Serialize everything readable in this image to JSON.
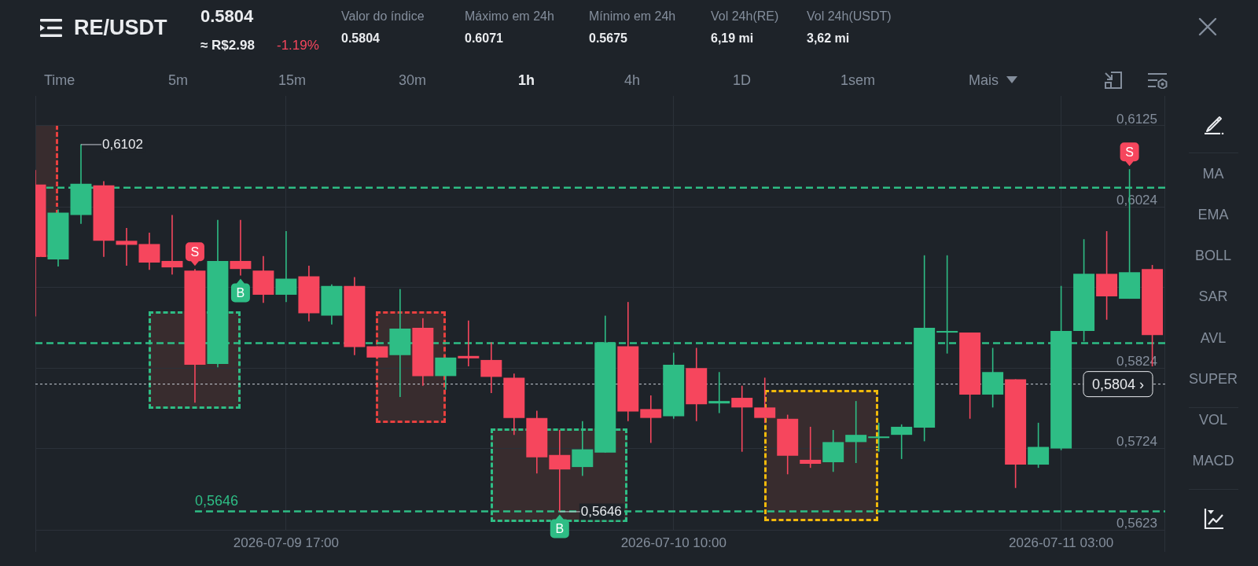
{
  "chart_data": {
    "type": "candlestick",
    "title": "RE/USDT",
    "x": [
      "2026-07-09T06:00",
      "2026-07-09T07:00",
      "2026-07-09T08:00",
      "2026-07-09T09:00",
      "2026-07-09T10:00",
      "2026-07-09T11:00",
      "2026-07-09T12:00",
      "2026-07-09T13:00",
      "2026-07-09T14:00",
      "2026-07-09T15:00",
      "2026-07-09T16:00",
      "2026-07-09T17:00",
      "2026-07-09T18:00",
      "2026-07-09T19:00",
      "2026-07-09T20:00",
      "2026-07-09T21:00",
      "2026-07-09T22:00",
      "2026-07-09T23:00",
      "2026-07-10T00:00",
      "2026-07-10T01:00",
      "2026-07-10T02:00",
      "2026-07-10T03:00",
      "2026-07-10T04:00",
      "2026-07-10T05:00",
      "2026-07-10T06:00",
      "2026-07-10T07:00",
      "2026-07-10T08:00",
      "2026-07-10T09:00",
      "2026-07-10T10:00",
      "2026-07-10T11:00",
      "2026-07-10T12:00",
      "2026-07-10T13:00",
      "2026-07-10T14:00",
      "2026-07-10T15:00",
      "2026-07-10T16:00",
      "2026-07-10T17:00",
      "2026-07-10T18:00",
      "2026-07-10T19:00",
      "2026-07-10T20:00",
      "2026-07-10T21:00",
      "2026-07-10T22:00",
      "2026-07-10T23:00",
      "2026-07-11T00:00",
      "2026-07-11T01:00",
      "2026-07-11T02:00",
      "2026-07-11T03:00",
      "2026-07-11T04:00",
      "2026-07-11T05:00",
      "2026-07-11T06:00",
      "2026-07-11T07:00"
    ],
    "ohlc": [
      [
        0.6052,
        0.607,
        0.5888,
        0.5962
      ],
      [
        0.5959,
        0.6021,
        0.595,
        0.6017
      ],
      [
        0.6014,
        0.6102,
        0.6003,
        0.6053
      ],
      [
        0.6051,
        0.6056,
        0.5962,
        0.5982
      ],
      [
        0.5982,
        0.5998,
        0.5951,
        0.5977
      ],
      [
        0.5978,
        0.5992,
        0.5946,
        0.5955
      ],
      [
        0.5957,
        0.6014,
        0.594,
        0.5949
      ],
      [
        0.5945,
        0.5947,
        0.5781,
        0.5828
      ],
      [
        0.5829,
        0.6008,
        0.5825,
        0.5957
      ],
      [
        0.5957,
        0.6008,
        0.5939,
        0.5947
      ],
      [
        0.5945,
        0.5963,
        0.5905,
        0.5915
      ],
      [
        0.5915,
        0.5994,
        0.5906,
        0.5935
      ],
      [
        0.5938,
        0.5951,
        0.5882,
        0.5892
      ],
      [
        0.5889,
        0.5928,
        0.5878,
        0.5926
      ],
      [
        0.5926,
        0.5937,
        0.584,
        0.585
      ],
      [
        0.5851,
        0.5851,
        0.5837,
        0.5837
      ],
      [
        0.584,
        0.5922,
        0.5788,
        0.5873
      ],
      [
        0.5874,
        0.5886,
        0.5802,
        0.5814
      ],
      [
        0.5814,
        0.5837,
        0.5797,
        0.5837
      ],
      [
        0.5839,
        0.5883,
        0.5826,
        0.5836
      ],
      [
        0.5834,
        0.5856,
        0.5793,
        0.5813
      ],
      [
        0.5812,
        0.5817,
        0.5741,
        0.5762
      ],
      [
        0.5762,
        0.5771,
        0.5693,
        0.5713
      ],
      [
        0.5716,
        0.5747,
        0.5646,
        0.5698
      ],
      [
        0.5701,
        0.5758,
        0.569,
        0.5723
      ],
      [
        0.5719,
        0.5889,
        0.5719,
        0.5856
      ],
      [
        0.5851,
        0.5906,
        0.5758,
        0.577
      ],
      [
        0.5773,
        0.579,
        0.5731,
        0.5762
      ],
      [
        0.5764,
        0.5843,
        0.5761,
        0.5828
      ],
      [
        0.5824,
        0.5849,
        0.5758,
        0.5779
      ],
      [
        0.578,
        0.5819,
        0.5768,
        0.5783
      ],
      [
        0.5787,
        0.5802,
        0.572,
        0.5775
      ],
      [
        0.5775,
        0.5812,
        0.5756,
        0.5762
      ],
      [
        0.5761,
        0.5766,
        0.5692,
        0.5715
      ],
      [
        0.571,
        0.5751,
        0.57,
        0.5705
      ],
      [
        0.5707,
        0.5747,
        0.5695,
        0.5732
      ],
      [
        0.5732,
        0.5783,
        0.5706,
        0.5741
      ],
      [
        0.5737,
        0.5756,
        0.572,
        0.5739
      ],
      [
        0.5741,
        0.5754,
        0.5711,
        0.5751
      ],
      [
        0.575,
        0.5964,
        0.5733,
        0.5874
      ],
      [
        0.5868,
        0.5964,
        0.5842,
        0.587
      ],
      [
        0.5868,
        0.5868,
        0.5761,
        0.5791
      ],
      [
        0.5791,
        0.5849,
        0.5775,
        0.5819
      ],
      [
        0.581,
        0.581,
        0.5675,
        0.5704
      ],
      [
        0.5704,
        0.5756,
        0.57,
        0.5726
      ],
      [
        0.5724,
        0.5926,
        0.5722,
        0.587
      ],
      [
        0.587,
        0.5984,
        0.5857,
        0.5941
      ],
      [
        0.5941,
        0.5994,
        0.5884,
        0.5913
      ],
      [
        0.591,
        0.6071,
        0.591,
        0.5943
      ],
      [
        0.5947,
        0.5952,
        0.5826,
        0.5865
      ]
    ],
    "colors": [
      "#f6465d",
      "#2ebd85",
      "#2ebd85",
      "#f6465d",
      "#f6465d",
      "#f6465d",
      "#f6465d",
      "#f6465d",
      "#2ebd85",
      "#f6465d",
      "#f6465d",
      "#2ebd85",
      "#f6465d",
      "#2ebd85",
      "#f6465d",
      "#f6465d",
      "#2ebd85",
      "#f6465d",
      "#2ebd85",
      "#f6465d",
      "#f6465d",
      "#f6465d",
      "#f6465d",
      "#f6465d",
      "#2ebd85",
      "#2ebd85",
      "#f6465d",
      "#f6465d",
      "#2ebd85",
      "#f6465d",
      "#2ebd85",
      "#f6465d",
      "#f6465d",
      "#f6465d",
      "#f6465d",
      "#2ebd85",
      "#2ebd85",
      "#2ebd85",
      "#2ebd85",
      "#2ebd85",
      "#2ebd85",
      "#f6465d",
      "#2ebd85",
      "#f6465d",
      "#2ebd85",
      "#2ebd85",
      "#2ebd85",
      "#f6465d",
      "#2ebd85",
      "#f6465d"
    ],
    "series": [
      {
        "type": "line",
        "color": "#2ebd85",
        "line_style": "dashed",
        "x": [
          "2026-07-09T13:00",
          "2026-07-11T07:34"
        ],
        "values": [
          0.5646,
          0.5646
        ]
      }
    ],
    "xlim": [
      "2026-07-09T06:00",
      "2026-07-11T07:34"
    ],
    "xticks": [
      {
        "value": "2026-07-09T17:00",
        "label": "2026-07-09 17:00"
      },
      {
        "value": "2026-07-10T10:00",
        "label": "2026-07-10 10:00"
      },
      {
        "value": "2026-07-11T03:00",
        "label": "2026-07-11 03:00"
      }
    ],
    "ylim": [
      0.5623,
      0.6162
    ],
    "yticks": [
      {
        "value": 0.6125,
        "label": "0,6125"
      },
      {
        "value": 0.6024,
        "label": "0,6024"
      },
      {
        "value": 0.5924,
        "label": null
      },
      {
        "value": 0.5824,
        "label": "0,5824"
      },
      {
        "value": 0.5724,
        "label": "0,5724"
      },
      {
        "value": 0.5623,
        "label": "0,5623"
      }
    ],
    "grid": true,
    "ref_lines": [
      {
        "axis": "y",
        "value": 0.6048,
        "color": "#2ebd85",
        "line_style": "dashed"
      },
      {
        "axis": "y",
        "value": 0.5855,
        "color": "#2ebd85",
        "line_style": "dashed"
      },
      {
        "axis": "y",
        "value": 0.5804,
        "label": "0,5804 ›",
        "color": "#c9ced6",
        "line_style": "dotted"
      }
    ],
    "annotations": [
      "0.5804",
      "≈ R$2.98",
      "-1.19%",
      "Valor do índice",
      "0.5804",
      "Máximo em 24h",
      "0.6071",
      "Mínimo em 24h",
      "0.5675",
      "Vol 24h(RE)",
      "6,19 mi",
      "Vol 24h(USDT)",
      "3,62 mi",
      "Time",
      "5m",
      "15m",
      "30m",
      "1h",
      "4h",
      "1D",
      "1sem",
      "Mais",
      "MA",
      "EMA",
      "BOLL",
      "SAR",
      "AVL",
      "SUPER",
      "VOL",
      "MACD",
      {
        "text": "0,6102",
        "x": "2026-07-09T08:00",
        "y": 0.6102
      },
      {
        "text": "S",
        "x": "2026-07-09T13:00",
        "y": 0.5947
      },
      {
        "text": "B",
        "x": "2026-07-09T15:00",
        "y": 0.5939
      },
      {
        "text": "0,5646",
        "x": "2026-07-10T05:00",
        "y": 0.5646
      },
      {
        "text": "B",
        "x": "2026-07-10T05:00",
        "y": 0.5646
      },
      {
        "text": "S",
        "x": "2026-07-11T06:00",
        "y": 0.6071
      },
      {
        "text": "0,5646",
        "x": "2026-07-09T13:00",
        "y": 0.5646
      }
    ]
  }
}
